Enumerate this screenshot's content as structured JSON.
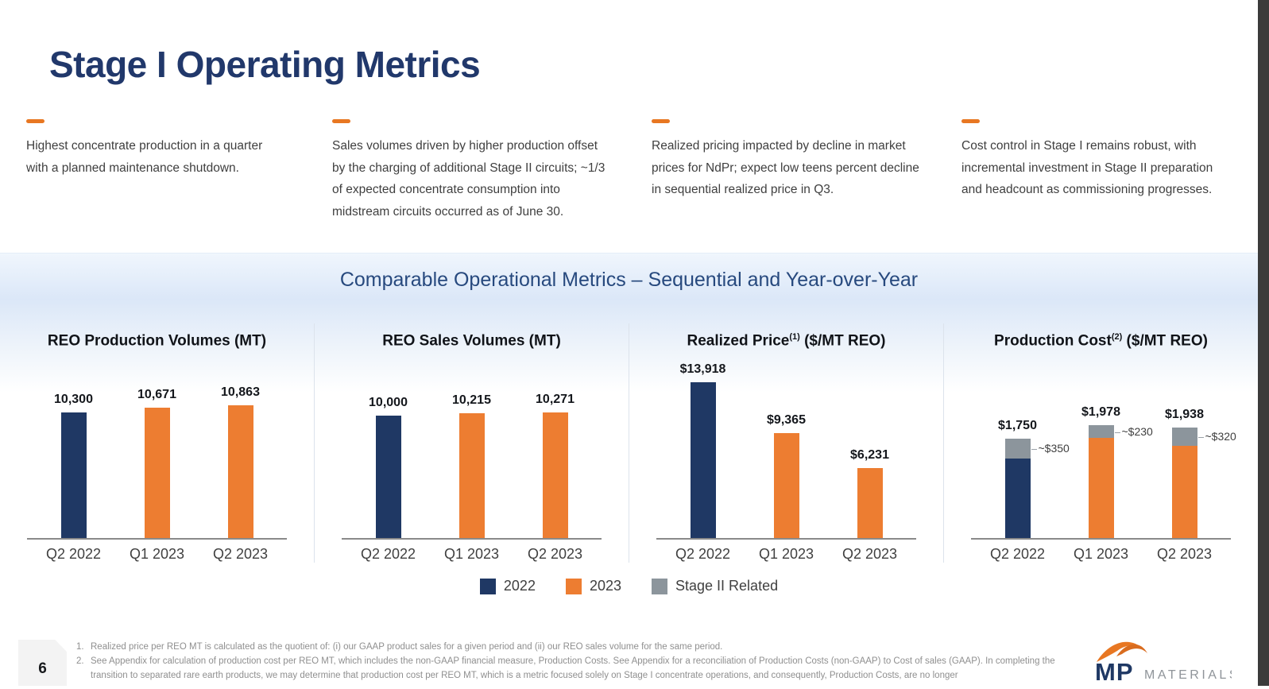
{
  "slide": {
    "title": "Stage I Operating Metrics",
    "page_number": "6"
  },
  "highlights": [
    {
      "text": "Highest concentrate production in a quarter with a planned maintenance shutdown."
    },
    {
      "text": "Sales volumes driven by higher production offset by the charging of additional Stage II circuits; ~1/3 of expected concentrate consumption into midstream circuits occurred as of June 30."
    },
    {
      "text": "Realized pricing impacted by decline in market prices for NdPr; expect low teens percent decline in sequential realized price in Q3."
    },
    {
      "text": "Cost control in Stage I remains robust, with incremental investment in Stage II preparation and headcount as commissioning progresses."
    }
  ],
  "banner": {
    "title": "Comparable Operational Metrics – Sequential and Year-over-Year"
  },
  "chart_data": [
    {
      "type": "bar",
      "title_pre": "REO Production Volumes (MT)",
      "title_sup": "",
      "title_post": "",
      "categories": [
        "Q2 2022",
        "Q1 2023",
        "Q2 2023"
      ],
      "values": [
        10300,
        10671,
        10863
      ],
      "labels": [
        "10,300",
        "10,671",
        "10,863"
      ],
      "colors": [
        "#1F3864",
        "#ED7D31",
        "#ED7D31"
      ],
      "ylim": [
        0,
        14000
      ],
      "grid": false,
      "legend_position": "bottom-shared"
    },
    {
      "type": "bar",
      "title_pre": "REO Sales Volumes (MT)",
      "title_sup": "",
      "title_post": "",
      "categories": [
        "Q2 2022",
        "Q1 2023",
        "Q2 2023"
      ],
      "values": [
        10000,
        10215,
        10271
      ],
      "labels": [
        "10,000",
        "10,215",
        "10,271"
      ],
      "colors": [
        "#1F3864",
        "#ED7D31",
        "#ED7D31"
      ],
      "ylim": [
        0,
        14000
      ],
      "grid": false,
      "legend_position": "bottom-shared"
    },
    {
      "type": "bar",
      "title_pre": "Realized Price",
      "title_sup": "(1)",
      "title_post": " ($/MT REO)",
      "categories": [
        "Q2 2022",
        "Q1 2023",
        "Q2 2023"
      ],
      "values": [
        13918,
        9365,
        6231
      ],
      "labels": [
        "$13,918",
        "$9,365",
        "$6,231"
      ],
      "colors": [
        "#1F3864",
        "#ED7D31",
        "#ED7D31"
      ],
      "ylim": [
        0,
        15300
      ],
      "grid": false,
      "legend_position": "bottom-shared"
    },
    {
      "type": "stacked-bar",
      "title_pre": "Production Cost",
      "title_sup": "(2)",
      "title_post": " ($/MT REO)",
      "categories": [
        "Q2 2022",
        "Q1 2023",
        "Q2 2023"
      ],
      "totals": [
        1750,
        1978,
        1938
      ],
      "total_labels": [
        "$1,750",
        "$1,978",
        "$1,938"
      ],
      "stage2_values": [
        350,
        230,
        320
      ],
      "stage2_labels": [
        "~$350",
        "~$230",
        "~$320"
      ],
      "base_colors": [
        "#1F3864",
        "#ED7D31",
        "#ED7D31"
      ],
      "stage2_color": "#8C959C",
      "ylim": [
        0,
        3000
      ],
      "grid": false,
      "legend_position": "bottom-shared"
    }
  ],
  "legend": [
    {
      "label": "2022",
      "color": "#1F3864"
    },
    {
      "label": "2023",
      "color": "#ED7D31"
    },
    {
      "label": "Stage II Related",
      "color": "#8C959C"
    }
  ],
  "footnotes": [
    {
      "num": "1.",
      "text": "Realized price per REO MT is calculated as the quotient of: (i) our GAAP product sales for a given period and (ii) our REO sales volume for the same period."
    },
    {
      "num": "2.",
      "text": "See Appendix for calculation of production cost per REO MT, which includes the non-GAAP financial measure, Production Costs. See Appendix for a reconciliation of Production Costs (non-GAAP) to Cost of sales (GAAP). In completing the transition to separated rare earth products, we may determine that production cost per REO MT, which is a metric focused solely on Stage I concentrate operations, and consequently, Production Costs, are no longer"
    }
  ],
  "logo": {
    "mp": "MP",
    "materials": "MATERIALS"
  },
  "colors": {
    "navy": "#1F3864",
    "orange": "#ED7D31",
    "gray": "#8C959C",
    "title_navy": "#21386B",
    "banner_text": "#27497E",
    "accent_dash": "#E87722"
  }
}
